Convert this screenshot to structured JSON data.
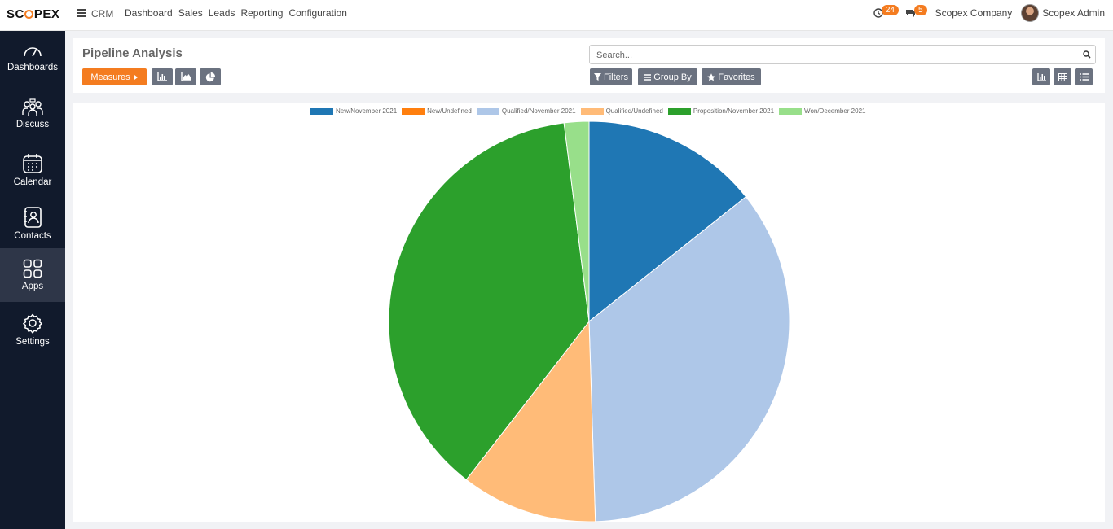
{
  "app": {
    "brand": "SCOPEX",
    "module": "CRM",
    "menu": [
      "Dashboard",
      "Sales",
      "Leads",
      "Reporting",
      "Configuration"
    ],
    "activity_count": "24",
    "message_count": "5",
    "company": "Scopex Company",
    "user": "Scopex Admin"
  },
  "sidebar": {
    "items": [
      {
        "label": "Dashboards",
        "icon": "speedometer-icon"
      },
      {
        "label": "Discuss",
        "icon": "team-discussion-icon"
      },
      {
        "label": "Calendar",
        "icon": "calendar-icon"
      },
      {
        "label": "Contacts",
        "icon": "contact-book-icon"
      },
      {
        "label": "Apps",
        "icon": "apps-grid-icon",
        "active": true
      },
      {
        "label": "Settings",
        "icon": "gear-icon"
      }
    ]
  },
  "controls": {
    "title": "Pipeline Analysis",
    "measures_label": "Measures",
    "search_placeholder": "Search...",
    "filters_label": "Filters",
    "group_by_label": "Group By",
    "favorites_label": "Favorites"
  },
  "colors": {
    "accent": "#f47c20",
    "sidebar": "#111a2c",
    "button_gray": "#6b7280"
  },
  "chart_data": {
    "type": "pie",
    "title": "",
    "legend_position": "top",
    "series": [
      {
        "name": "New/November 2021",
        "value": 14.3,
        "color": "#1f77b4"
      },
      {
        "name": "New/Undefined",
        "value": 0,
        "color": "#ff7f0e"
      },
      {
        "name": "Qualified/November 2021",
        "value": 35.2,
        "color": "#aec7e8"
      },
      {
        "name": "Qualified/Undefined",
        "value": 11.0,
        "color": "#ffbb78"
      },
      {
        "name": "Proposition/November 2021",
        "value": 37.5,
        "color": "#2ca02c"
      },
      {
        "name": "Won/December 2021",
        "value": 2.0,
        "color": "#98df8a"
      }
    ]
  }
}
